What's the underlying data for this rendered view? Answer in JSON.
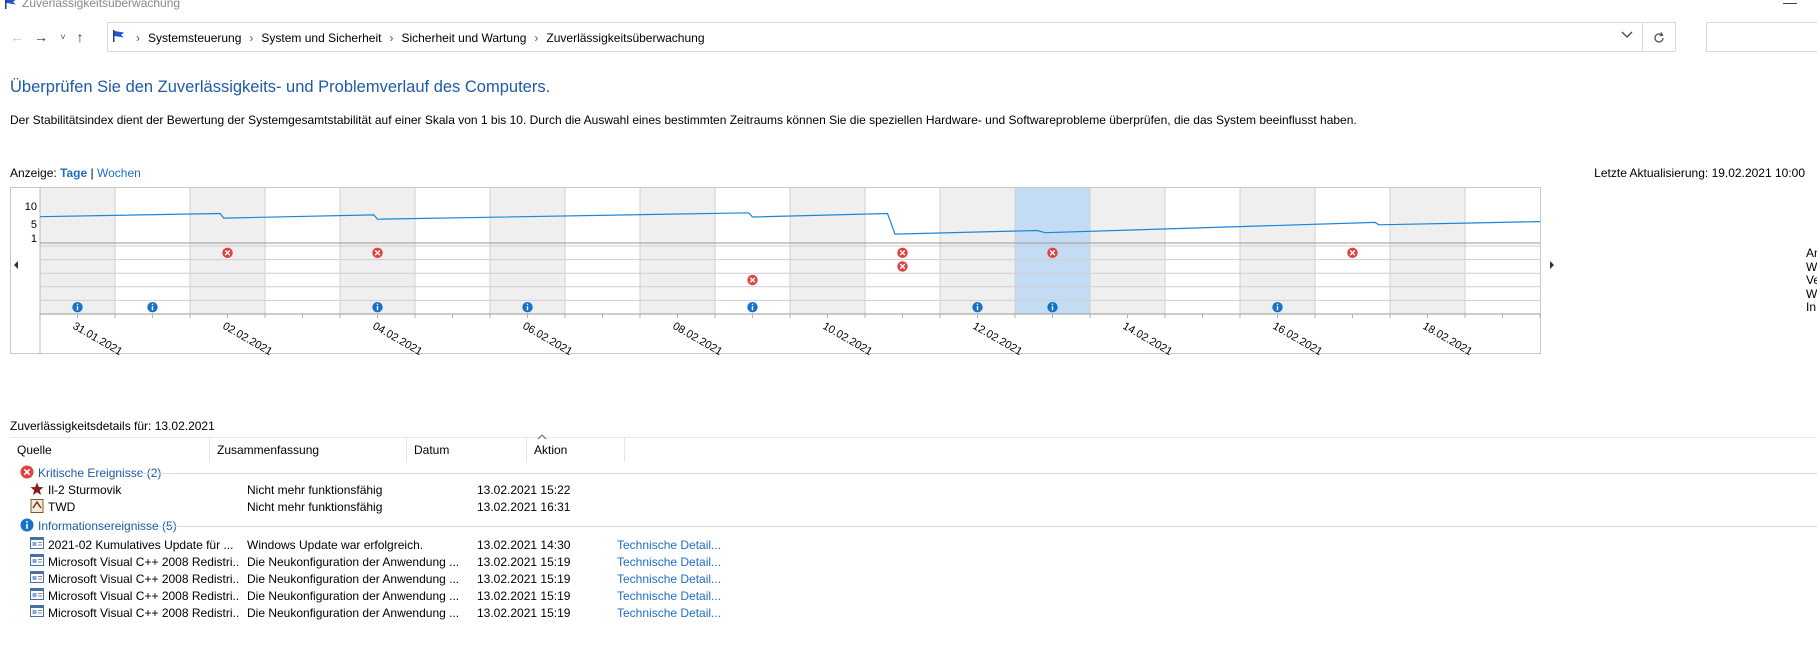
{
  "window": {
    "title": "Zuverlässigkeitsüberwachung"
  },
  "breadcrumb": [
    "Systemsteuerung",
    "System und Sicherheit",
    "Sicherheit und Wartung",
    "Zuverlässigkeitsüberwachung"
  ],
  "heading": "Überprüfen Sie den Zuverlässigkeits- und Problemverlauf des Computers.",
  "description": "Der Stabilitätsindex dient der Bewertung der Systemgesamtstabilität auf einer Skala von 1 bis 10. Durch die Auswahl eines bestimmten Zeitraums können Sie die speziellen Hardware- und Softwareprobleme überprüfen, die das System beeinflusst haben.",
  "view": {
    "label": "Anzeige:",
    "days": "Tage",
    "sep": "|",
    "weeks": "Wochen"
  },
  "last_update": "Letzte Aktualisierung: 19.02.2021 10:00",
  "chart_data": {
    "type": "line",
    "y_ticks": [
      "10",
      "5",
      "1"
    ],
    "ylim": [
      1,
      10
    ],
    "x_labels": [
      "31.01.2021",
      "02.02.2021",
      "04.02.2021",
      "06.02.2021",
      "08.02.2021",
      "10.02.2021",
      "12.02.2021",
      "14.02.2021",
      "16.02.2021",
      "18.02.2021"
    ],
    "dates": [
      "31.01.2021",
      "01.02.2021",
      "02.02.2021",
      "03.02.2021",
      "04.02.2021",
      "05.02.2021",
      "06.02.2021",
      "07.02.2021",
      "08.02.2021",
      "09.02.2021",
      "10.02.2021",
      "11.02.2021",
      "12.02.2021",
      "13.02.2021",
      "14.02.2021",
      "15.02.2021",
      "16.02.2021",
      "17.02.2021",
      "18.02.2021",
      "19.02.2021"
    ],
    "selected_date": "13.02.2021",
    "stability_index": [
      {
        "d": 0.0,
        "v": 7.0
      },
      {
        "d": 2.4,
        "v": 7.9
      },
      {
        "d": 2.45,
        "v": 6.6
      },
      {
        "d": 4.45,
        "v": 7.5
      },
      {
        "d": 4.5,
        "v": 6.3
      },
      {
        "d": 9.45,
        "v": 8.1
      },
      {
        "d": 9.5,
        "v": 6.9
      },
      {
        "d": 11.3,
        "v": 7.9
      },
      {
        "d": 11.4,
        "v": 2.1
      },
      {
        "d": 13.3,
        "v": 3.1
      },
      {
        "d": 13.4,
        "v": 2.5
      },
      {
        "d": 17.8,
        "v": 5.4
      },
      {
        "d": 17.85,
        "v": 4.7
      },
      {
        "d": 19.0,
        "v": 5.2
      },
      {
        "d": 20.0,
        "v": 5.6
      }
    ],
    "event_rows": [
      "Anwendungsfehler",
      "Windows-Fehler",
      "Verschiedene Fehler",
      "Warnungen",
      "Informationsereignisse"
    ],
    "events": [
      {
        "day": 2,
        "row": 0,
        "kind": "error"
      },
      {
        "day": 4,
        "row": 0,
        "kind": "error"
      },
      {
        "day": 11,
        "row": 0,
        "kind": "error"
      },
      {
        "day": 11,
        "row": 1,
        "kind": "error"
      },
      {
        "day": 9,
        "row": 2,
        "kind": "error"
      },
      {
        "day": 13,
        "row": 0,
        "kind": "error"
      },
      {
        "day": 17,
        "row": 0,
        "kind": "error"
      },
      {
        "day": 0,
        "row": 4,
        "kind": "info"
      },
      {
        "day": 1,
        "row": 4,
        "kind": "info"
      },
      {
        "day": 4,
        "row": 4,
        "kind": "info"
      },
      {
        "day": 6,
        "row": 4,
        "kind": "info"
      },
      {
        "day": 9,
        "row": 4,
        "kind": "info"
      },
      {
        "day": 12,
        "row": 4,
        "kind": "info"
      },
      {
        "day": 13,
        "row": 4,
        "kind": "info"
      },
      {
        "day": 16,
        "row": 4,
        "kind": "info"
      }
    ],
    "colors": {
      "line": "#1a86d8",
      "selected": "#c3dcf3",
      "shaded": "#efefef",
      "error": "#e04141",
      "info": "#1672c8"
    }
  },
  "details_header": "Zuverlässigkeitsdetails für: 13.02.2021",
  "table": {
    "columns": [
      "Quelle",
      "Zusammenfassung",
      "Datum",
      "Aktion"
    ],
    "groups": [
      {
        "label": "Kritische Ereignisse (2)",
        "icon": "critical-icon",
        "rows": [
          {
            "source": "Il-2 Sturmovik",
            "summary": "Nicht mehr funktionsfähig",
            "date": "13.02.2021 15:22",
            "action": "",
            "icon": "star-app-icon"
          },
          {
            "source": "TWD",
            "summary": "Nicht mehr funktionsfähig",
            "date": "13.02.2021 16:31",
            "action": "",
            "icon": "app-icon"
          }
        ]
      },
      {
        "label": "Informationsereignisse (5)",
        "icon": "info-icon",
        "rows": [
          {
            "source": "2021-02 Kumulatives Update für ...",
            "summary": "Windows Update war erfolgreich.",
            "date": "13.02.2021 14:30",
            "action": "Technische Detail...",
            "icon": "installer-icon"
          },
          {
            "source": "Microsoft Visual C++ 2008 Redistri...",
            "summary": "Die Neukonfiguration der Anwendung ...",
            "date": "13.02.2021 15:19",
            "action": "Technische Detail...",
            "icon": "installer-icon"
          },
          {
            "source": "Microsoft Visual C++ 2008 Redistri...",
            "summary": "Die Neukonfiguration der Anwendung ...",
            "date": "13.02.2021 15:19",
            "action": "Technische Detail...",
            "icon": "installer-icon"
          },
          {
            "source": "Microsoft Visual C++ 2008 Redistri...",
            "summary": "Die Neukonfiguration der Anwendung ...",
            "date": "13.02.2021 15:19",
            "action": "Technische Detail...",
            "icon": "installer-icon"
          },
          {
            "source": "Microsoft Visual C++ 2008 Redistri...",
            "summary": "Die Neukonfiguration der Anwendung ...",
            "date": "13.02.2021 15:19",
            "action": "Technische Detail...",
            "icon": "installer-icon"
          }
        ]
      }
    ]
  },
  "right_side_labels": [
    "An",
    "W",
    "Ve",
    "W",
    "In"
  ]
}
